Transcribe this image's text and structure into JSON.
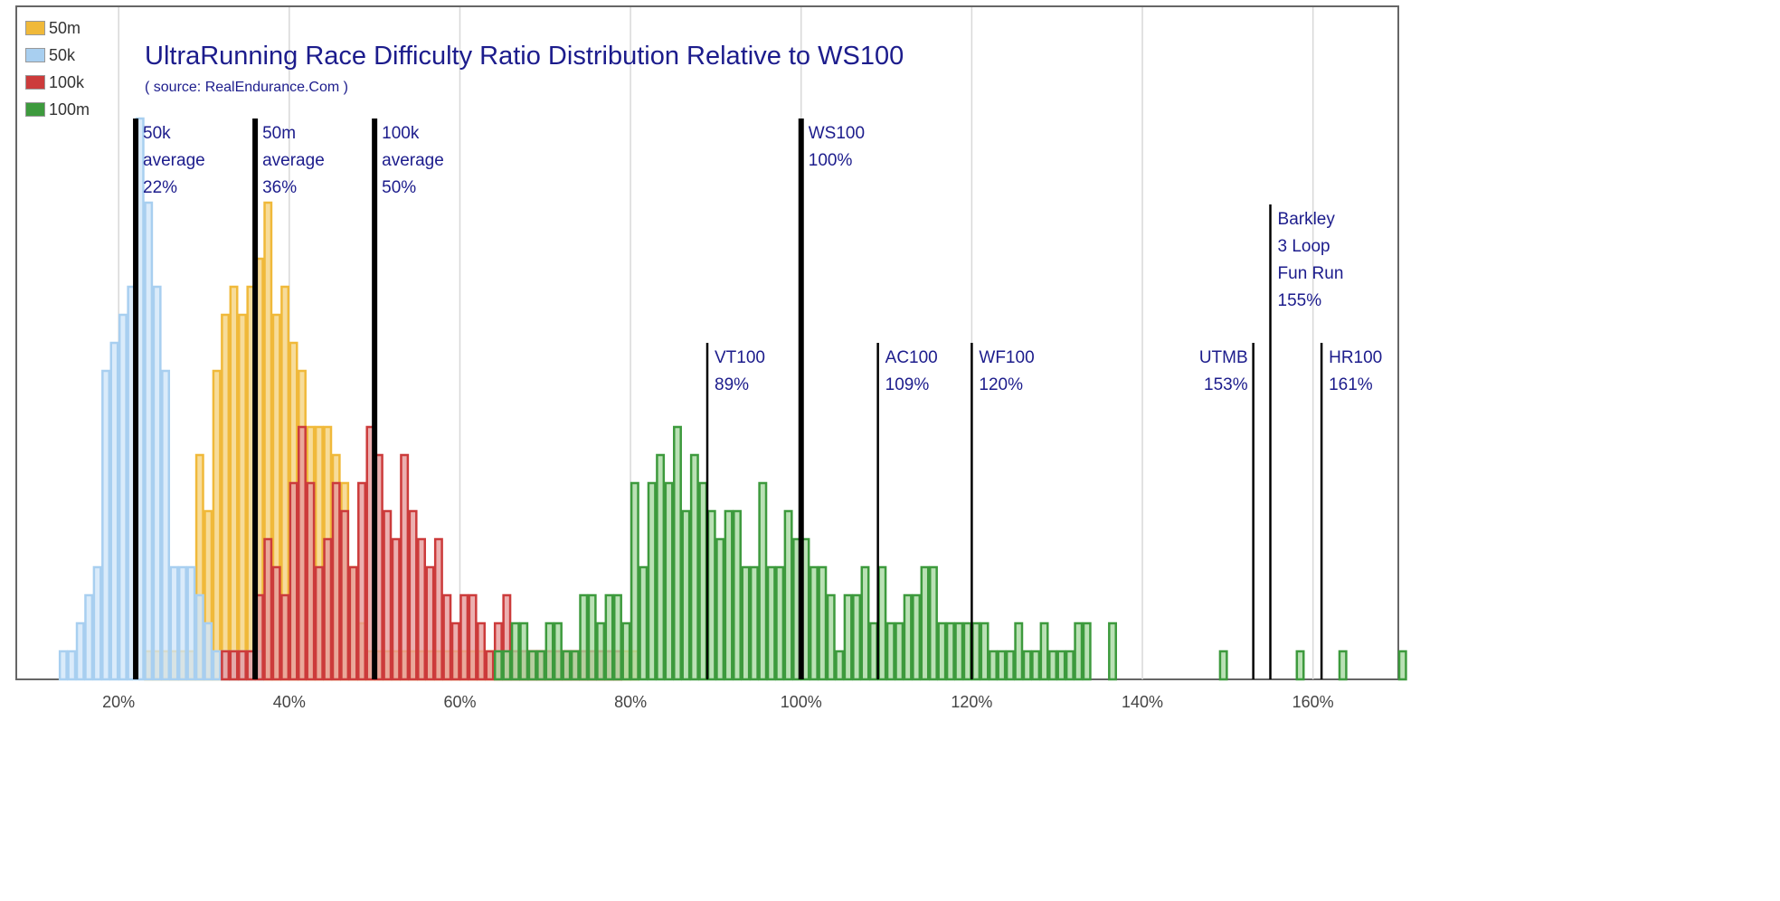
{
  "chart_data": {
    "type": "bar",
    "title": "UltraRunning Race Difficulty Ratio Distribution Relative to WS100",
    "subtitle": "( source: RealEndurance.Com )",
    "xlabel": "",
    "ylabel": "",
    "xlim": [
      8,
      170
    ],
    "x_ticks": [
      "20%",
      "40%",
      "60%",
      "80%",
      "100%",
      "120%",
      "140%",
      "160%"
    ],
    "x_tick_values": [
      20,
      40,
      60,
      80,
      100,
      120,
      140,
      160
    ],
    "y_max_count": 20,
    "bin_width": 1,
    "grid": "vertical",
    "legend_position": "top-left",
    "series": [
      {
        "name": "50m",
        "color": "#f0b93a",
        "fill": "#f5d27e",
        "bins": [
          [
            23,
            1
          ],
          [
            24,
            1
          ],
          [
            25,
            1
          ],
          [
            26,
            1
          ],
          [
            27,
            1
          ],
          [
            28,
            1
          ],
          [
            29,
            8
          ],
          [
            30,
            6
          ],
          [
            31,
            11
          ],
          [
            32,
            13
          ],
          [
            33,
            14
          ],
          [
            34,
            13
          ],
          [
            35,
            14
          ],
          [
            36,
            15
          ],
          [
            37,
            17
          ],
          [
            38,
            13
          ],
          [
            39,
            14
          ],
          [
            40,
            12
          ],
          [
            41,
            11
          ],
          [
            42,
            9
          ],
          [
            43,
            9
          ],
          [
            44,
            9
          ],
          [
            45,
            8
          ],
          [
            46,
            7
          ],
          [
            47,
            4
          ],
          [
            48,
            2
          ],
          [
            49,
            1
          ],
          [
            50,
            1
          ],
          [
            51,
            1
          ],
          [
            52,
            1
          ],
          [
            53,
            1
          ],
          [
            54,
            1
          ],
          [
            55,
            1
          ],
          [
            56,
            1
          ],
          [
            57,
            1
          ],
          [
            58,
            1
          ],
          [
            59,
            1
          ],
          [
            60,
            1
          ],
          [
            61,
            1
          ],
          [
            62,
            1
          ],
          [
            63,
            1
          ],
          [
            64,
            1
          ],
          [
            65,
            1
          ],
          [
            66,
            1
          ],
          [
            67,
            1
          ],
          [
            68,
            1
          ],
          [
            69,
            1
          ],
          [
            70,
            1
          ],
          [
            71,
            1
          ],
          [
            72,
            1
          ],
          [
            73,
            1
          ],
          [
            74,
            1
          ],
          [
            75,
            1
          ],
          [
            76,
            1
          ],
          [
            77,
            1
          ],
          [
            78,
            1
          ],
          [
            79,
            1
          ],
          [
            80,
            1
          ]
        ]
      },
      {
        "name": "50k",
        "color": "#a8cff0",
        "fill": "#cfe5f8",
        "bins": [
          [
            13,
            1
          ],
          [
            14,
            1
          ],
          [
            15,
            2
          ],
          [
            16,
            3
          ],
          [
            17,
            4
          ],
          [
            18,
            11
          ],
          [
            19,
            12
          ],
          [
            20,
            13
          ],
          [
            21,
            14
          ],
          [
            22,
            20
          ],
          [
            23,
            17
          ],
          [
            24,
            14
          ],
          [
            25,
            11
          ],
          [
            26,
            4
          ],
          [
            27,
            4
          ],
          [
            28,
            4
          ],
          [
            29,
            3
          ],
          [
            30,
            2
          ],
          [
            31,
            1
          ],
          [
            32,
            1
          ],
          [
            33,
            1
          ],
          [
            34,
            1
          ],
          [
            35,
            1
          ],
          [
            36,
            1
          ]
        ]
      },
      {
        "name": "100k",
        "color": "#cc3b3b",
        "fill": "#e79a9a",
        "bins": [
          [
            32,
            1
          ],
          [
            33,
            1
          ],
          [
            34,
            1
          ],
          [
            35,
            1
          ],
          [
            36,
            3
          ],
          [
            37,
            5
          ],
          [
            38,
            4
          ],
          [
            39,
            3
          ],
          [
            40,
            7
          ],
          [
            41,
            9
          ],
          [
            42,
            7
          ],
          [
            43,
            4
          ],
          [
            44,
            5
          ],
          [
            45,
            7
          ],
          [
            46,
            6
          ],
          [
            47,
            4
          ],
          [
            48,
            7
          ],
          [
            49,
            9
          ],
          [
            50,
            8
          ],
          [
            51,
            6
          ],
          [
            52,
            5
          ],
          [
            53,
            8
          ],
          [
            54,
            6
          ],
          [
            55,
            5
          ],
          [
            56,
            4
          ],
          [
            57,
            5
          ],
          [
            58,
            3
          ],
          [
            59,
            2
          ],
          [
            60,
            3
          ],
          [
            61,
            3
          ],
          [
            62,
            2
          ],
          [
            63,
            1
          ],
          [
            64,
            2
          ],
          [
            65,
            3
          ],
          [
            66,
            1
          ],
          [
            67,
            1
          ],
          [
            68,
            1
          ],
          [
            69,
            1
          ],
          [
            70,
            1
          ],
          [
            71,
            1
          ],
          [
            72,
            1
          ],
          [
            73,
            1
          ],
          [
            74,
            1
          ],
          [
            75,
            1
          ],
          [
            76,
            1
          ],
          [
            77,
            1
          ],
          [
            78,
            1
          ]
        ]
      },
      {
        "name": "100m",
        "color": "#3d9a3d",
        "fill": "#a6d9a0",
        "bins": [
          [
            64,
            1
          ],
          [
            65,
            1
          ],
          [
            66,
            2
          ],
          [
            67,
            2
          ],
          [
            68,
            1
          ],
          [
            69,
            1
          ],
          [
            70,
            2
          ],
          [
            71,
            2
          ],
          [
            72,
            1
          ],
          [
            73,
            1
          ],
          [
            74,
            3
          ],
          [
            75,
            3
          ],
          [
            76,
            2
          ],
          [
            77,
            3
          ],
          [
            78,
            3
          ],
          [
            79,
            2
          ],
          [
            80,
            7
          ],
          [
            81,
            4
          ],
          [
            82,
            7
          ],
          [
            83,
            8
          ],
          [
            84,
            7
          ],
          [
            85,
            9
          ],
          [
            86,
            6
          ],
          [
            87,
            8
          ],
          [
            88,
            7
          ],
          [
            89,
            6
          ],
          [
            90,
            5
          ],
          [
            91,
            6
          ],
          [
            92,
            6
          ],
          [
            93,
            4
          ],
          [
            94,
            4
          ],
          [
            95,
            7
          ],
          [
            96,
            4
          ],
          [
            97,
            4
          ],
          [
            98,
            6
          ],
          [
            99,
            5
          ],
          [
            100,
            5
          ],
          [
            101,
            4
          ],
          [
            102,
            4
          ],
          [
            103,
            3
          ],
          [
            104,
            1
          ],
          [
            105,
            3
          ],
          [
            106,
            3
          ],
          [
            107,
            4
          ],
          [
            108,
            2
          ],
          [
            109,
            4
          ],
          [
            110,
            2
          ],
          [
            111,
            2
          ],
          [
            112,
            3
          ],
          [
            113,
            3
          ],
          [
            114,
            4
          ],
          [
            115,
            4
          ],
          [
            116,
            2
          ],
          [
            117,
            2
          ],
          [
            118,
            2
          ],
          [
            119,
            2
          ],
          [
            120,
            2
          ],
          [
            121,
            2
          ],
          [
            122,
            1
          ],
          [
            123,
            1
          ],
          [
            124,
            1
          ],
          [
            125,
            2
          ],
          [
            126,
            1
          ],
          [
            127,
            1
          ],
          [
            128,
            2
          ],
          [
            129,
            1
          ],
          [
            130,
            1
          ],
          [
            131,
            1
          ],
          [
            132,
            2
          ],
          [
            133,
            2
          ],
          [
            136,
            2
          ],
          [
            149,
            1
          ],
          [
            158,
            1
          ],
          [
            163,
            1
          ],
          [
            170,
            1
          ]
        ]
      }
    ],
    "markers": [
      {
        "x": 22,
        "lines": [
          "50k",
          "average",
          "22%"
        ],
        "weight": "heavy",
        "label_side": "right",
        "top_level": "high"
      },
      {
        "x": 36,
        "lines": [
          "50m",
          "average",
          "36%"
        ],
        "weight": "heavy",
        "label_side": "right",
        "top_level": "high"
      },
      {
        "x": 50,
        "lines": [
          "100k",
          "average",
          "50%"
        ],
        "weight": "heavy",
        "label_side": "right",
        "top_level": "high"
      },
      {
        "x": 89,
        "lines": [
          "VT100",
          "89%"
        ],
        "weight": "light",
        "label_side": "right",
        "top_level": "low"
      },
      {
        "x": 100,
        "lines": [
          "WS100",
          "100%"
        ],
        "weight": "heavy",
        "label_side": "right",
        "top_level": "high"
      },
      {
        "x": 109,
        "lines": [
          "AC100",
          "109%"
        ],
        "weight": "light",
        "label_side": "right",
        "top_level": "low"
      },
      {
        "x": 120,
        "lines": [
          "WF100",
          "120%"
        ],
        "weight": "light",
        "label_side": "right",
        "top_level": "low"
      },
      {
        "x": 153,
        "lines": [
          "UTMB",
          "153%"
        ],
        "weight": "light",
        "label_side": "left",
        "top_level": "low"
      },
      {
        "x": 155,
        "lines": [
          "Barkley",
          "3 Loop",
          "Fun Run",
          "155%"
        ],
        "weight": "light",
        "label_side": "right",
        "top_level": "mid"
      },
      {
        "x": 161,
        "lines": [
          "HR100",
          "161%"
        ],
        "weight": "light",
        "label_side": "right",
        "top_level": "low"
      }
    ]
  }
}
